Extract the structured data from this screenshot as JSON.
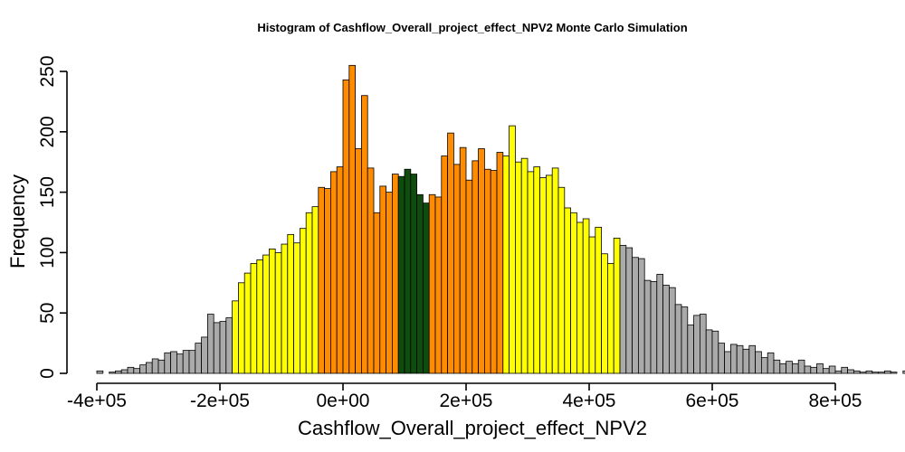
{
  "chart_data": {
    "type": "histogram",
    "title": "Histogram of  Cashflow_Overall_project_effect_NPV2  Monte Carlo Simulation",
    "xlabel": "Cashflow_Overall_project_effect_NPV2",
    "ylabel": "Frequency",
    "xlim": [
      -400000,
      800000
    ],
    "ylim": [
      0,
      250
    ],
    "x_ticks": [
      -400000,
      -200000,
      0,
      200000,
      400000,
      600000,
      800000
    ],
    "x_tick_labels": [
      "-4e+05",
      "-2e+05",
      "0e+00",
      "2e+05",
      "4e+05",
      "6e+05",
      "8e+05"
    ],
    "y_ticks": [
      0,
      50,
      100,
      150,
      200,
      250
    ],
    "y_tick_labels": [
      "0",
      "50",
      "100",
      "150",
      "200",
      "250"
    ],
    "bin_start": -400000,
    "bin_width": 10000,
    "frequencies": [
      2,
      0,
      1,
      2,
      3,
      5,
      4,
      7,
      9,
      12,
      11,
      17,
      18,
      16,
      19,
      19,
      25,
      30,
      49,
      42,
      43,
      46,
      60,
      75,
      83,
      91,
      94,
      98,
      103,
      100,
      107,
      115,
      108,
      120,
      133,
      138,
      154,
      153,
      167,
      171,
      243,
      255,
      186,
      230,
      170,
      133,
      155,
      150,
      165,
      163,
      169,
      165,
      148,
      141,
      148,
      146,
      180,
      199,
      173,
      187,
      160,
      176,
      186,
      169,
      168,
      183,
      180,
      205,
      175,
      178,
      167,
      171,
      162,
      164,
      170,
      154,
      137,
      133,
      125,
      128,
      113,
      121,
      99,
      91,
      112,
      106,
      104,
      96,
      95,
      77,
      76,
      82,
      73,
      71,
      57,
      55,
      40,
      48,
      49,
      36,
      35,
      25,
      18,
      24,
      23,
      20,
      23,
      18,
      13,
      17,
      11,
      8,
      10,
      8,
      11,
      6,
      5,
      8,
      4,
      6,
      2,
      5,
      3,
      2,
      1,
      2,
      1,
      1,
      2,
      1,
      0,
      2
    ],
    "bin_colors": {
      "grey": "#aaaaaa",
      "yellow": "#ffff00",
      "orange": "#ff8c00",
      "green": "#0e4d0e"
    },
    "color_ranges": [
      {
        "from": -400000,
        "to": -180000,
        "color": "grey"
      },
      {
        "from": -180000,
        "to": -40000,
        "color": "yellow"
      },
      {
        "from": -40000,
        "to": 90000,
        "color": "orange"
      },
      {
        "from": 90000,
        "to": 140000,
        "color": "green"
      },
      {
        "from": 140000,
        "to": 260000,
        "color": "orange"
      },
      {
        "from": 260000,
        "to": 450000,
        "color": "yellow"
      },
      {
        "from": 450000,
        "to": 820000,
        "color": "grey"
      }
    ]
  }
}
